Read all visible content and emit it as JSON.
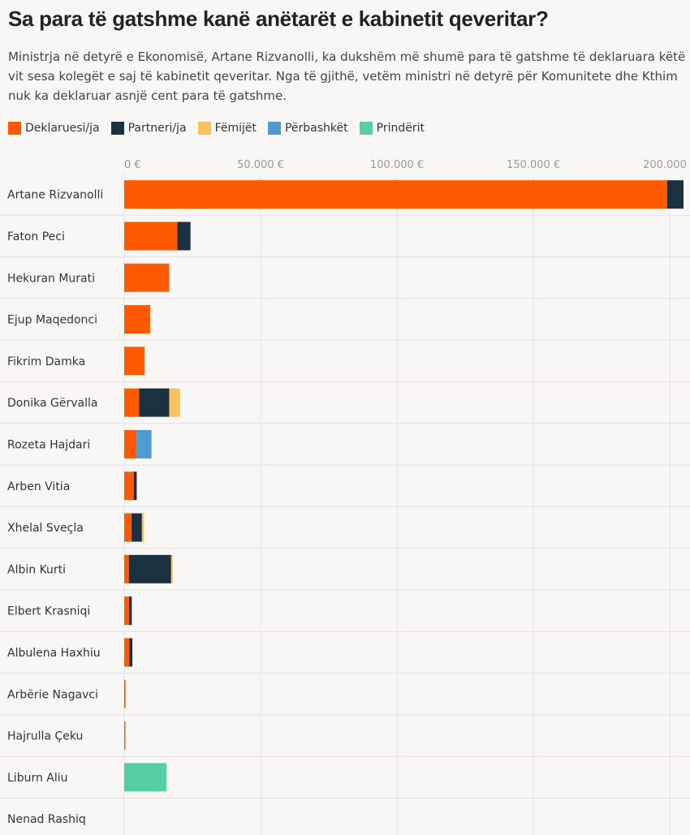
{
  "header": {
    "title": "Sa para të gatshme kanë anëtarët e kabinetit qeveritar?",
    "subtitle": "Ministrja në detyrë e Ekonomisë, Artane Rizvanolli, ka dukshëm më shumë para të gatshme të deklaruara këtë vit sesa kolegët e saj të kabinetit qeveritar. Nga të gjithë, vetëm ministri në detyrë për Komunitete dhe Kthim nuk ka deklaruar asnjë cent para të gatshme."
  },
  "legend": [
    {
      "label": "Deklaruesi/ja",
      "color": "#ff5a00"
    },
    {
      "label": "Partneri/ja",
      "color": "#1b3140"
    },
    {
      "label": "Fëmijët",
      "color": "#f9c25a"
    },
    {
      "label": "Përbashkët",
      "color": "#4f9bd0"
    },
    {
      "label": "Prindërit",
      "color": "#56cfa0"
    }
  ],
  "chart_data": {
    "type": "bar",
    "orientation": "horizontal",
    "stacked": true,
    "xlim": [
      0,
      205000
    ],
    "x_ticks": [
      0,
      50000,
      100000,
      150000,
      200000
    ],
    "x_tick_labels": [
      "0 €",
      "50.000 €",
      "100.000 €",
      "150.000 €",
      "200.000 €"
    ],
    "grid": true,
    "legend_position": "top",
    "categories": [
      "Artane Rizvanolli",
      "Faton Peci",
      "Hekuran Murati",
      "Ejup Maqedonci",
      "Fikrim Damka",
      "Donika Gërvalla",
      "Rozeta Hajdari",
      "Arben Vitia",
      "Xhelal Sveçla",
      "Albin Kurti",
      "Elbert Krasniqi",
      "Albulena Haxhiu",
      "Arbërie Nagavci",
      "Hajrulla Çeku",
      "Liburn Aliu",
      "Nenad Rashiq"
    ],
    "series": [
      {
        "name": "Deklaruesi/ja",
        "color": "#ff5a00",
        "values": [
          199000,
          19500,
          16500,
          9500,
          7500,
          5500,
          4500,
          3500,
          2700,
          1700,
          1800,
          1900,
          500,
          400,
          0,
          0
        ]
      },
      {
        "name": "Partneri/ja",
        "color": "#1b3140",
        "values": [
          6000,
          4800,
          0,
          0,
          0,
          11000,
          0,
          1100,
          3800,
          15500,
          1000,
          1100,
          0,
          0,
          0,
          0
        ]
      },
      {
        "name": "Fëmijët",
        "color": "#f9c25a",
        "values": [
          0,
          0,
          0,
          0,
          0,
          4000,
          0,
          0,
          700,
          600,
          0,
          0,
          0,
          0,
          0,
          0
        ]
      },
      {
        "name": "Përbashkët",
        "color": "#4f9bd0",
        "values": [
          0,
          0,
          0,
          0,
          0,
          0,
          5500,
          0,
          0,
          0,
          0,
          0,
          0,
          0,
          0,
          0
        ]
      },
      {
        "name": "Prindërit",
        "color": "#56cfa0",
        "values": [
          0,
          0,
          0,
          0,
          0,
          0,
          0,
          0,
          0,
          0,
          0,
          0,
          0,
          0,
          15500,
          0
        ]
      }
    ]
  }
}
